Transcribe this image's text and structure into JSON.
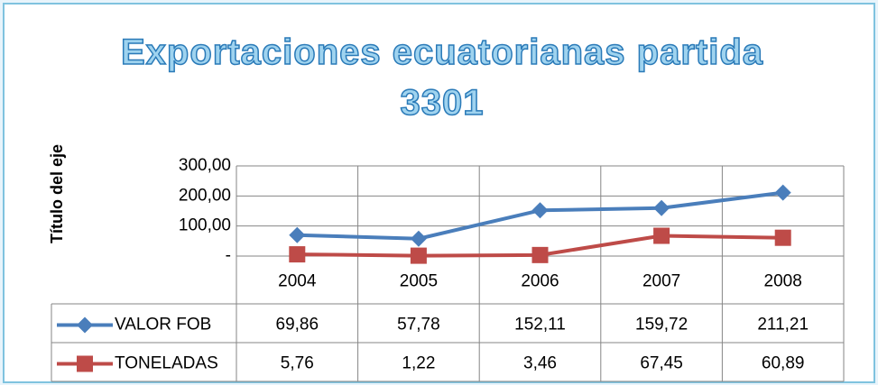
{
  "chart_data": {
    "type": "line",
    "title": "Exportaciones ecuatorianas partida 3301",
    "y_label": "Título del eje",
    "categories": [
      "2004",
      "2005",
      "2006",
      "2007",
      "2008"
    ],
    "series": [
      {
        "name": "VALOR FOB",
        "color": "#4a7ebb",
        "values": [
          69.86,
          57.78,
          152.11,
          159.72,
          211.21
        ],
        "value_labels": [
          "69,86",
          "57,78",
          "152,11",
          "159,72",
          "211,21"
        ]
      },
      {
        "name": "TONELADAS",
        "color": "#be4b48",
        "values": [
          5.76,
          1.22,
          3.46,
          67.45,
          60.89
        ],
        "value_labels": [
          "5,76",
          "1,22",
          "3,46",
          "67,45",
          "60,89"
        ]
      }
    ],
    "ylim": [
      0,
      300
    ],
    "yticks": [
      {
        "value": 0,
        "label": "-"
      },
      {
        "value": 100,
        "label": "100,00"
      },
      {
        "value": 200,
        "label": "200,00"
      },
      {
        "value": 300,
        "label": "300,00"
      }
    ],
    "grid": true
  }
}
